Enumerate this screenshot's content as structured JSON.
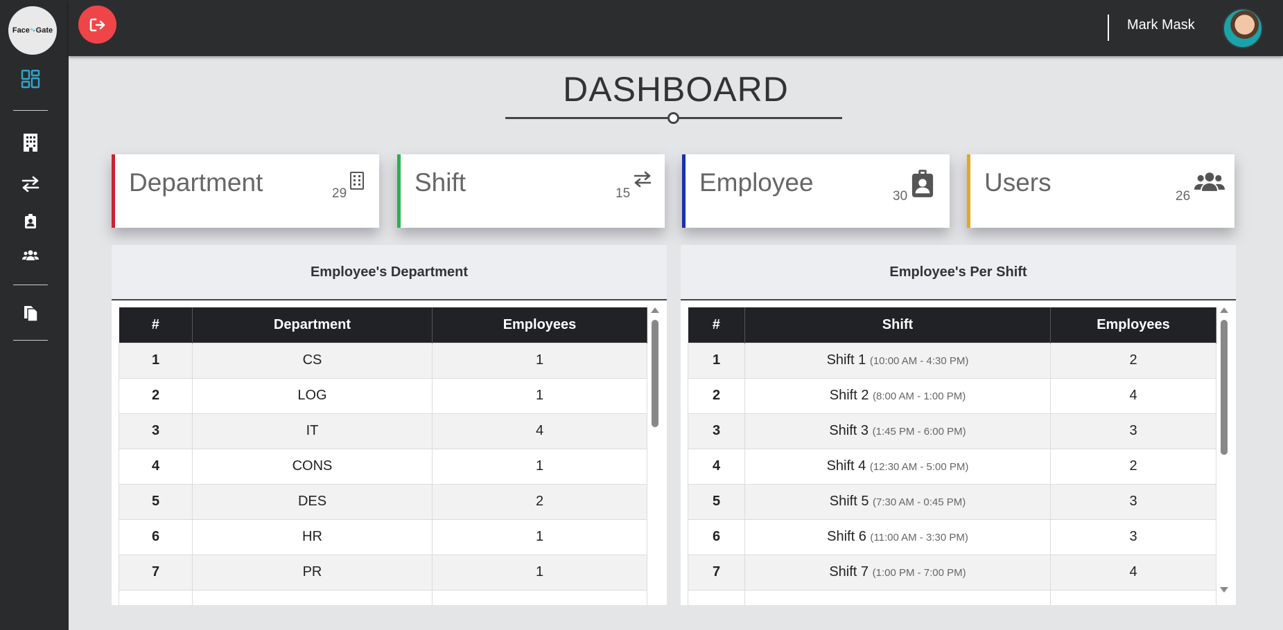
{
  "sidebar": {
    "logo_left": "Face",
    "logo_dots": "°•",
    "logo_right": "Gate",
    "items": [
      {
        "name": "dashboard",
        "icon": "grid-icon"
      },
      {
        "name": "departments",
        "icon": "building-icon"
      },
      {
        "name": "shifts",
        "icon": "exchange-icon"
      },
      {
        "name": "employees",
        "icon": "id-badge-icon"
      },
      {
        "name": "users",
        "icon": "users-icon"
      },
      {
        "name": "reports",
        "icon": "copy-icon"
      }
    ],
    "accent": "#29a8d6"
  },
  "header": {
    "user_name": "Mark Mask",
    "logout_color": "#f04548"
  },
  "page": {
    "title": "DASHBOARD"
  },
  "cards": [
    {
      "label": "Department",
      "count": "29",
      "color": "#cc2230",
      "icon": "building-icon"
    },
    {
      "label": "Shift",
      "count": "15",
      "color": "#23b648",
      "icon": "exchange-icon"
    },
    {
      "label": "Employee",
      "count": "30",
      "color": "#1e2fa6",
      "icon": "id-badge-icon"
    },
    {
      "label": "Users",
      "count": "26",
      "color": "#e1a823",
      "icon": "users-icon"
    }
  ],
  "department_panel": {
    "title": "Employee's Department",
    "columns": [
      "#",
      "Department",
      "Employees"
    ],
    "rows": [
      {
        "num": "1",
        "name": "CS",
        "count": "1"
      },
      {
        "num": "2",
        "name": "LOG",
        "count": "1"
      },
      {
        "num": "3",
        "name": "IT",
        "count": "4"
      },
      {
        "num": "4",
        "name": "CONS",
        "count": "1"
      },
      {
        "num": "5",
        "name": "DES",
        "count": "2"
      },
      {
        "num": "6",
        "name": "HR",
        "count": "1"
      },
      {
        "num": "7",
        "name": "PR",
        "count": "1"
      }
    ]
  },
  "shift_panel": {
    "title": "Employee's Per Shift",
    "columns": [
      "#",
      "Shift",
      "Employees"
    ],
    "rows": [
      {
        "num": "1",
        "name": "Shift 1",
        "time": "(10:00 AM - 4:30 PM)",
        "count": "2"
      },
      {
        "num": "2",
        "name": "Shift 2",
        "time": "(8:00 AM - 1:00 PM)",
        "count": "4"
      },
      {
        "num": "3",
        "name": "Shift 3",
        "time": "(1:45 PM - 6:00 PM)",
        "count": "3"
      },
      {
        "num": "4",
        "name": "Shift 4",
        "time": "(12:30 AM - 5:00 PM)",
        "count": "2"
      },
      {
        "num": "5",
        "name": "Shift 5",
        "time": "(7:30 AM - 0:45 PM)",
        "count": "3"
      },
      {
        "num": "6",
        "name": "Shift 6",
        "time": "(11:00 AM - 3:30 PM)",
        "count": "3"
      },
      {
        "num": "7",
        "name": "Shift 7",
        "time": "(1:00 PM - 7:00 PM)",
        "count": "4"
      }
    ]
  }
}
